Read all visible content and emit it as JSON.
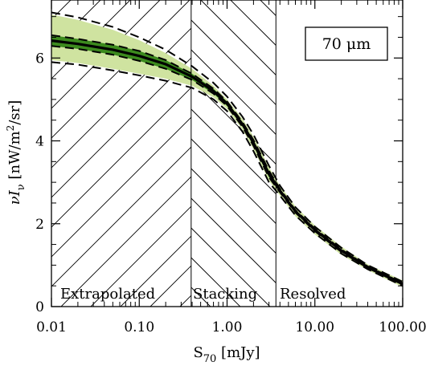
{
  "chart_data": {
    "type": "line",
    "xscale": "log",
    "xlim": [
      0.01,
      100
    ],
    "ylim": [
      0,
      7.4
    ],
    "xlabel_main": "S",
    "xlabel_sub": "70",
    "xlabel_unit": " [mJy]",
    "ylabel_main": "νI",
    "ylabel_sub": "ν",
    "ylabel_unit_pre": " [nW/m",
    "ylabel_sup": "2",
    "ylabel_unit_post": "/sr]",
    "xticks": [
      0.01,
      0.1,
      1,
      10,
      100
    ],
    "xtick_labels": [
      "0.01",
      "0.10",
      "1.00",
      "10.00",
      "100.00"
    ],
    "yticks": [
      0,
      2,
      4,
      6
    ],
    "ytick_labels": [
      "0",
      "2",
      "4",
      "6"
    ],
    "inset_label": "70 μm",
    "regions": [
      {
        "label": "Extrapolated",
        "x_start": 0.01,
        "x_end": 0.39,
        "hatch": "forward"
      },
      {
        "label": "Stacking",
        "x_start": 0.39,
        "x_end": 3.6,
        "hatch": "backward"
      },
      {
        "label": "Resolved",
        "x_start": 3.6,
        "x_end": 100,
        "hatch": "none"
      }
    ],
    "x": [
      0.01,
      0.02,
      0.05,
      0.1,
      0.2,
      0.4,
      0.7,
      1.0,
      1.5,
      2.0,
      3.0,
      4.0,
      6.0,
      10,
      20,
      40,
      100
    ],
    "series": [
      {
        "role": "central",
        "values": [
          6.42,
          6.34,
          6.2,
          6.05,
          5.85,
          5.55,
          5.2,
          4.9,
          4.4,
          3.95,
          3.2,
          2.8,
          2.3,
          1.85,
          1.35,
          0.95,
          0.55
        ]
      },
      {
        "role": "inner-upper",
        "values": [
          6.55,
          6.46,
          6.32,
          6.17,
          5.95,
          5.62,
          5.26,
          4.95,
          4.45,
          4.02,
          3.28,
          2.84,
          2.33,
          1.88,
          1.38,
          0.97,
          0.57
        ]
      },
      {
        "role": "inner-lower",
        "values": [
          6.29,
          6.22,
          6.08,
          5.93,
          5.74,
          5.47,
          5.14,
          4.84,
          4.34,
          3.88,
          3.12,
          2.76,
          2.27,
          1.82,
          1.32,
          0.93,
          0.53
        ]
      },
      {
        "role": "outer-upper",
        "values": [
          7.1,
          6.98,
          6.75,
          6.5,
          6.2,
          5.8,
          5.4,
          5.07,
          4.58,
          4.15,
          3.4,
          2.92,
          2.4,
          1.93,
          1.42,
          1.0,
          0.6
        ]
      },
      {
        "role": "outer-lower",
        "values": [
          5.9,
          5.84,
          5.7,
          5.58,
          5.45,
          5.28,
          5.0,
          4.72,
          4.22,
          3.75,
          3.0,
          2.68,
          2.2,
          1.77,
          1.28,
          0.9,
          0.5
        ]
      },
      {
        "role": "light-band-upper",
        "values": [
          7.05,
          6.92,
          6.68,
          6.43,
          6.12,
          5.74,
          5.33,
          5.0,
          4.53,
          4.1,
          3.36,
          2.92,
          2.42,
          1.96,
          1.45,
          1.02,
          0.63
        ]
      },
      {
        "role": "light-band-lower",
        "values": [
          5.95,
          5.88,
          5.74,
          5.62,
          5.5,
          5.33,
          5.05,
          4.77,
          4.27,
          3.8,
          3.04,
          2.68,
          2.18,
          1.74,
          1.25,
          0.88,
          0.47
        ]
      }
    ],
    "colors": {
      "light_band": "#cfe3a0",
      "dark_band": "#3c8a1e",
      "lines": "#000000",
      "hatch": "#000000"
    }
  }
}
